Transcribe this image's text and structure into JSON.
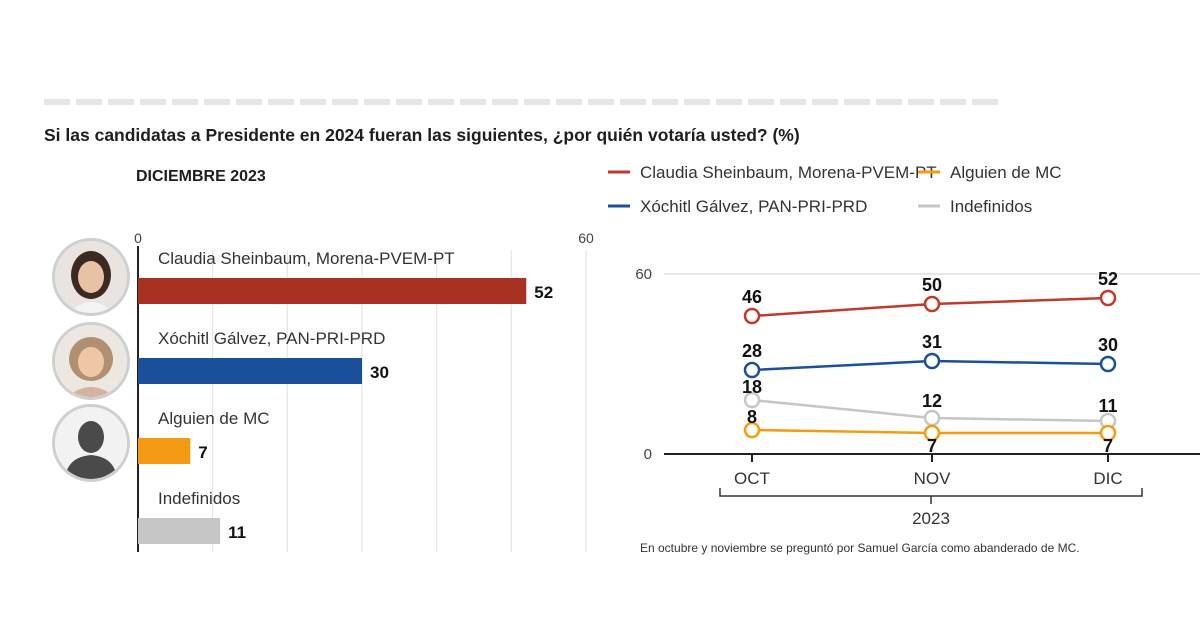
{
  "header": {
    "question": "Si las candidatas a Presidente en 2024 fueran las siguientes, ¿por quién votaría usted? (%)",
    "subtitle": "DICIEMBRE 2023"
  },
  "chart_data": [
    {
      "type": "bar",
      "orientation": "horizontal",
      "title": "DICIEMBRE 2023",
      "xlim": [
        0,
        60
      ],
      "axis_ticks": [
        "0",
        "60"
      ],
      "categories": [
        "Claudia Sheinbaum, Morena-PVEM-PT",
        "Xóchitl Gálvez, PAN-PRI-PRD",
        "Alguien de MC",
        "Indefinidos"
      ],
      "values": [
        52,
        30,
        7,
        11
      ],
      "colors": [
        "#a83222",
        "#1b4f9c",
        "#f39a12",
        "#c6c6c6"
      ],
      "avatars": [
        "claudia-portrait-icon",
        "xochitl-portrait-icon",
        "silhouette-icon",
        null
      ],
      "grid": true
    },
    {
      "type": "line",
      "x": [
        "OCT",
        "NOV",
        "DIC"
      ],
      "x_group_label": "2023",
      "ylim": [
        0,
        60
      ],
      "y_ticks": [
        0,
        60
      ],
      "legend": [
        {
          "name": "Claudia Sheinbaum, Morena-PVEM-PT",
          "color": "#c0392b"
        },
        {
          "name": "Alguien de MC",
          "color": "#f39c12"
        },
        {
          "name": "Xóchitl Gálvez, PAN-PRI-PRD",
          "color": "#1b4f9c"
        },
        {
          "name": "Indefinidos",
          "color": "#c6c6c6"
        }
      ],
      "legend_placement": "top",
      "series": [
        {
          "name": "Claudia Sheinbaum, Morena-PVEM-PT",
          "values": [
            46,
            50,
            52
          ],
          "color": "#c0392b"
        },
        {
          "name": "Xóchitl Gálvez, PAN-PRI-PRD",
          "values": [
            28,
            31,
            30
          ],
          "color": "#1b4f9c"
        },
        {
          "name": "Indefinidos",
          "values": [
            18,
            12,
            11
          ],
          "color": "#c6c6c6"
        },
        {
          "name": "Alguien de MC",
          "values": [
            8,
            7,
            7
          ],
          "color": "#f39c12"
        }
      ]
    }
  ],
  "footnote": "En octubre y noviembre se preguntó por Samuel García como abanderado de MC."
}
